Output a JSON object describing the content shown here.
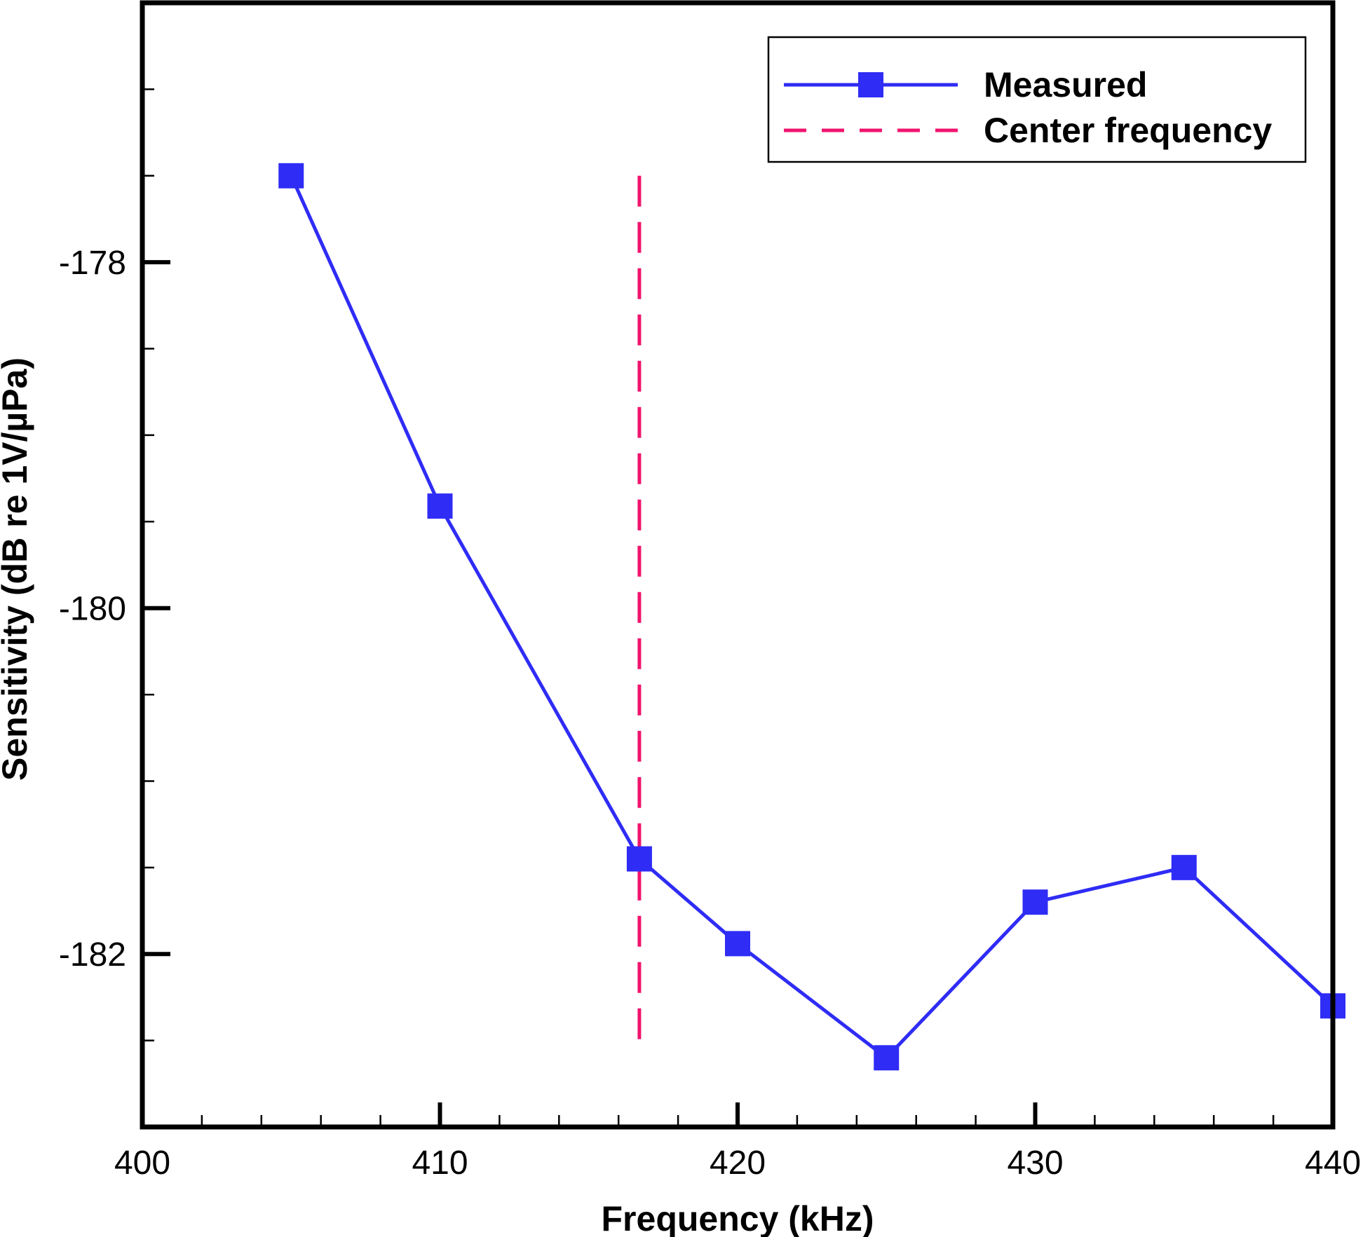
{
  "chart_data": {
    "type": "line",
    "title": "",
    "xlabel": "Frequency (kHz)",
    "ylabel": "Sensitivity (dB re 1V/µPa)",
    "xlim": [
      400,
      440
    ],
    "ylim": [
      -183.0,
      -176.5
    ],
    "x_major_ticks": [
      400,
      410,
      420,
      430,
      440
    ],
    "x_tick_labels": [
      "400",
      "410",
      "420",
      "430",
      "440"
    ],
    "x_minor_step": 2,
    "y_major_ticks": [
      -178,
      -180,
      -182
    ],
    "y_tick_labels": [
      "-178",
      "-180",
      "-182"
    ],
    "y_minor_step": 0.5,
    "grid": false,
    "legend_position": "top-right",
    "series": [
      {
        "name": "Measured",
        "style": "solid line with square markers",
        "color": "#2f2cf5",
        "x": [
          405,
          410,
          416.7,
          420,
          425,
          430,
          435,
          440
        ],
        "y": [
          -177.5,
          -179.41,
          -181.45,
          -181.94,
          -182.6,
          -181.7,
          -181.5,
          -182.3
        ]
      },
      {
        "name": "Center frequency",
        "style": "dashed vertical line",
        "color": "#f0146e",
        "x": [
          416.7,
          416.7
        ],
        "y": [
          -177.5,
          -182.5
        ]
      }
    ]
  }
}
